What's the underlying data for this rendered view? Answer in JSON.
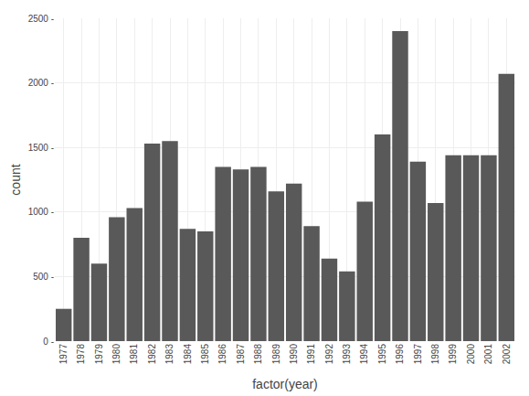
{
  "chart_data": {
    "type": "bar",
    "categories": [
      "1977",
      "1978",
      "1979",
      "1980",
      "1981",
      "1982",
      "1983",
      "1984",
      "1985",
      "1986",
      "1987",
      "1988",
      "1989",
      "1990",
      "1991",
      "1992",
      "1993",
      "1994",
      "1995",
      "1996",
      "1997",
      "1998",
      "1999",
      "2000",
      "2001",
      "2002"
    ],
    "values": [
      250,
      800,
      600,
      960,
      1030,
      1530,
      1550,
      870,
      850,
      1350,
      1330,
      1350,
      1160,
      1220,
      890,
      640,
      540,
      1080,
      1600,
      2400,
      1390,
      1070,
      1440,
      1440,
      1440,
      2070
    ],
    "color": "#595959",
    "xlabel": "factor(year)",
    "ylabel": "count",
    "ylim": [
      0,
      2500
    ],
    "yticks": [
      {
        "value": 0,
        "label": "0 -"
      },
      {
        "value": 500,
        "label": "500 -"
      },
      {
        "value": 1000,
        "label": "1000 -"
      },
      {
        "value": 1500,
        "label": "1500 -"
      },
      {
        "value": 2000,
        "label": "2000 -"
      },
      {
        "value": 2500,
        "label": "2500 -"
      }
    ],
    "grid": true
  }
}
